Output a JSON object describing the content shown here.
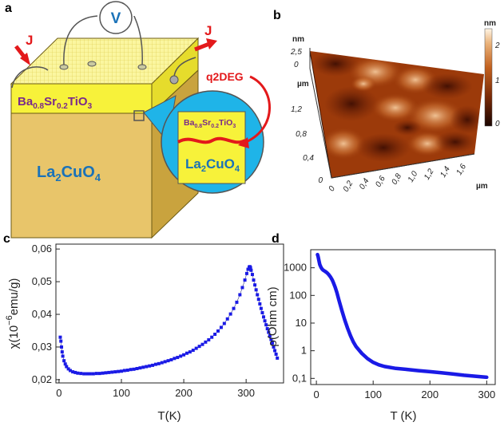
{
  "panels": {
    "a": "a",
    "b": "b",
    "c": "c",
    "d": "d"
  },
  "panel_a": {
    "voltmeter": "V",
    "current_in": "J",
    "current_out": "J",
    "gas_label": "q2DEG",
    "film": {
      "base": "Ba",
      "s1": "0.8",
      "mid": "Sr",
      "s2": "0.2",
      "tail": "TiO",
      "s3": "3"
    },
    "substrate": {
      "base": "La",
      "s1": "2",
      "tail": "CuO",
      "s2": "4"
    },
    "colors": {
      "film": "#f7f23a",
      "substrate": "#e8c56a",
      "bubble": "#1fb4e8",
      "gas": "#e3191b",
      "text_blue": "#1a72b8",
      "text_purple": "#7a2a8a"
    }
  },
  "panel_b": {
    "z_unit": "nm",
    "z_max": "2,5",
    "z_zero": "0",
    "y_unit": "µm",
    "x_unit": "µm",
    "y_ticks": [
      "1,2",
      "0,8",
      "0,4",
      "0"
    ],
    "x_ticks": [
      "0",
      "0,2",
      "0,4",
      "0,6",
      "0,8",
      "1,0",
      "1,2",
      "1,4",
      "1,6"
    ],
    "colorbar_unit": "nm",
    "colorbar_ticks": [
      "2",
      "1",
      "0"
    ]
  },
  "chart_data": [
    {
      "panel": "c",
      "type": "scatter",
      "xlabel": "T(K)",
      "ylabel_main": "χ(10",
      "ylabel_sup": "−6",
      "ylabel_tail": "emu/g)",
      "xlim": [
        -5,
        360
      ],
      "ylim": [
        0.019,
        0.0615
      ],
      "x_ticks": [
        0,
        100,
        200,
        300
      ],
      "x_tick_labels": [
        "0",
        "100",
        "200",
        "300"
      ],
      "y_ticks": [
        0.02,
        0.03,
        0.04,
        0.05,
        0.06
      ],
      "y_tick_labels": [
        "0,02",
        "0,03",
        "0,04",
        "0,05",
        "0,06"
      ],
      "marker_color": "#1a1ae6",
      "x": [
        2,
        3,
        4,
        5,
        6,
        8,
        10,
        12,
        15,
        18,
        22,
        26,
        30,
        35,
        40,
        45,
        50,
        55,
        60,
        65,
        70,
        75,
        80,
        85,
        90,
        95,
        100,
        105,
        110,
        115,
        120,
        125,
        130,
        135,
        140,
        145,
        150,
        155,
        160,
        165,
        170,
        175,
        180,
        185,
        190,
        195,
        200,
        205,
        210,
        215,
        220,
        225,
        230,
        235,
        240,
        245,
        250,
        255,
        260,
        265,
        270,
        275,
        280,
        285,
        290,
        294,
        298,
        301,
        303,
        305,
        306,
        307,
        308,
        310,
        312,
        314,
        316,
        318,
        320,
        322,
        324,
        326,
        328,
        330,
        332,
        334,
        336,
        338,
        340,
        342,
        344,
        346,
        348,
        350
      ],
      "y": [
        0.033,
        0.0318,
        0.03,
        0.0285,
        0.0272,
        0.0258,
        0.0248,
        0.024,
        0.0233,
        0.0228,
        0.0224,
        0.0222,
        0.022,
        0.0219,
        0.0218,
        0.0218,
        0.0218,
        0.0218,
        0.0219,
        0.0219,
        0.022,
        0.0221,
        0.0222,
        0.0223,
        0.0224,
        0.0225,
        0.0226,
        0.0228,
        0.0229,
        0.0231,
        0.0232,
        0.0234,
        0.0236,
        0.0238,
        0.024,
        0.0242,
        0.0244,
        0.0247,
        0.0249,
        0.0252,
        0.0255,
        0.0258,
        0.0261,
        0.0265,
        0.0268,
        0.0272,
        0.0276,
        0.0281,
        0.0285,
        0.029,
        0.0296,
        0.0302,
        0.0308,
        0.0315,
        0.0322,
        0.033,
        0.0339,
        0.0349,
        0.036,
        0.0372,
        0.0386,
        0.0401,
        0.0418,
        0.0437,
        0.046,
        0.0482,
        0.0505,
        0.0525,
        0.0538,
        0.0545,
        0.0546,
        0.0543,
        0.0535,
        0.0522,
        0.0505,
        0.049,
        0.0475,
        0.046,
        0.0446,
        0.0432,
        0.0418,
        0.0405,
        0.0392,
        0.038,
        0.0368,
        0.0356,
        0.0345,
        0.0334,
        0.0323,
        0.0312,
        0.03,
        0.0289,
        0.0278,
        0.0266
      ]
    },
    {
      "panel": "d",
      "type": "line",
      "scale": "log-y",
      "xlabel": "T (K)",
      "ylabel": "ρ(Ohm cm)",
      "xlim": [
        -10,
        315
      ],
      "ylim": [
        0.06,
        4500
      ],
      "x_ticks": [
        0,
        100,
        200,
        300
      ],
      "x_tick_labels": [
        "0",
        "100",
        "200",
        "300"
      ],
      "y_ticks": [
        0.1,
        1,
        10,
        100,
        1000
      ],
      "y_tick_labels": [
        "0,1",
        "1",
        "10",
        "100",
        "1000"
      ],
      "line_color": "#1a1ae6",
      "x": [
        2,
        3,
        4,
        5,
        6,
        8,
        10,
        12,
        15,
        18,
        20,
        22,
        25,
        28,
        30,
        33,
        36,
        40,
        45,
        50,
        55,
        60,
        65,
        70,
        80,
        90,
        100,
        110,
        120,
        140,
        160,
        180,
        200,
        220,
        240,
        260,
        280,
        300
      ],
      "y": [
        3000,
        2600,
        2000,
        1600,
        1300,
        1050,
        900,
        820,
        750,
        680,
        620,
        560,
        460,
        360,
        290,
        200,
        130,
        65,
        28,
        13,
        6.5,
        3.5,
        2.1,
        1.4,
        0.8,
        0.52,
        0.38,
        0.31,
        0.27,
        0.23,
        0.21,
        0.19,
        0.175,
        0.16,
        0.145,
        0.13,
        0.12,
        0.11
      ]
    }
  ]
}
